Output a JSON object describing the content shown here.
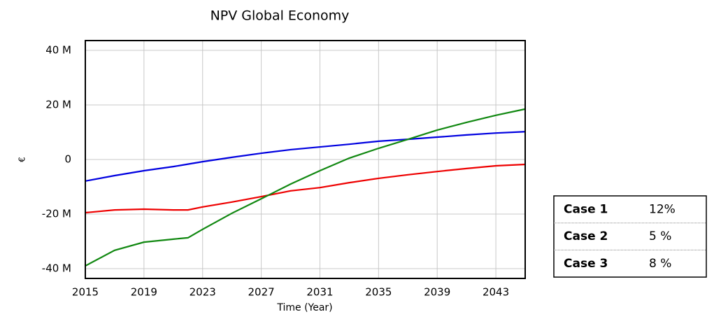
{
  "chart_data": {
    "type": "line",
    "title": "NPV Global Economy",
    "xlabel": "Time (Year)",
    "ylabel": "€",
    "x": [
      2015,
      2017,
      2019,
      2021,
      2022,
      2023,
      2025,
      2027,
      2029,
      2031,
      2033,
      2035,
      2037,
      2039,
      2041,
      2043,
      2045
    ],
    "series": [
      {
        "name": "Case 1",
        "color": "#0000e0",
        "values": [
          -7.9,
          -5.9,
          -4.1,
          -2.6,
          -1.7,
          -0.8,
          0.8,
          2.3,
          3.6,
          4.6,
          5.6,
          6.7,
          7.4,
          8.2,
          9.0,
          9.7,
          10.2
        ]
      },
      {
        "name": "Case 2",
        "color": "#ee0000",
        "values": [
          -19.5,
          -18.5,
          -18.2,
          -18.5,
          -18.5,
          -17.4,
          -15.6,
          -13.6,
          -11.5,
          -10.3,
          -8.5,
          -6.9,
          -5.6,
          -4.4,
          -3.3,
          -2.3,
          -1.8
        ]
      },
      {
        "name": "Case 3",
        "color": "#118811",
        "values": [
          -39,
          -33.3,
          -30.3,
          -29.2,
          -28.7,
          -25.6,
          -19.7,
          -14.4,
          -9.0,
          -4.1,
          0.5,
          4.1,
          7.4,
          10.8,
          13.6,
          16.2,
          18.5
        ]
      }
    ],
    "xlim": [
      2015,
      2045
    ],
    "xticks": [
      2015,
      2019,
      2023,
      2027,
      2031,
      2035,
      2039,
      2043
    ],
    "ylim": [
      -43.6,
      43.6
    ],
    "yticks": [
      {
        "value": -40,
        "label": "-40 M"
      },
      {
        "value": -20,
        "label": "-20 M"
      },
      0,
      {
        "value": 20,
        "label": "20 M"
      },
      {
        "value": 40,
        "label": "40 M"
      }
    ],
    "grid": true,
    "legend_table": [
      {
        "name": "Case 1",
        "color": "#1f3f7a",
        "rate": "12%"
      },
      {
        "name": "Case 2",
        "color": "#ee0000",
        "rate": "5 %"
      },
      {
        "name": "Case 3",
        "color": "#76923c",
        "rate": "8 %"
      }
    ]
  }
}
